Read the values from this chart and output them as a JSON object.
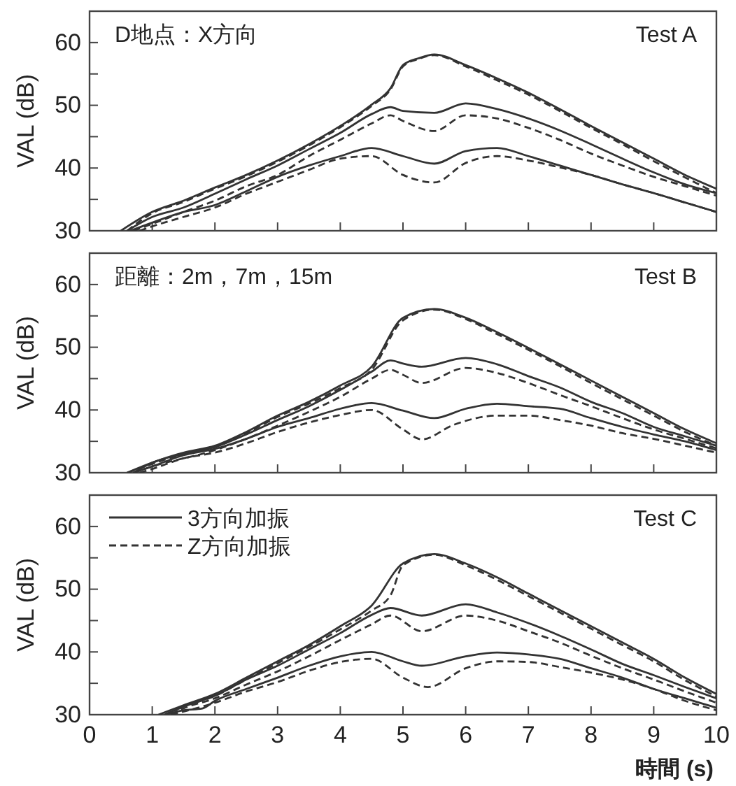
{
  "chart_data": [
    {
      "type": "line",
      "title": "Test A",
      "subtitle": "D地点：X方向",
      "ylabel": "VAL (dB)",
      "xlim": [
        0,
        10
      ],
      "ylim": [
        30,
        65
      ],
      "xticks": [
        0,
        1,
        2,
        3,
        4,
        5,
        6,
        7,
        8,
        9,
        10
      ],
      "yticks": [
        30,
        {
          "value": 35,
          "label": null
        },
        40,
        {
          "value": 45,
          "label": null
        },
        50,
        {
          "value": 55,
          "label": null
        },
        60
      ],
      "tick_labels": "y",
      "series": [
        {
          "color": "#333333",
          "line_style": "solid",
          "x": [
            0.5,
            1,
            1.5,
            2,
            2.5,
            3,
            3.5,
            4,
            4.5,
            4.8,
            5,
            5.25,
            5.5,
            6,
            6.5,
            7,
            7.5,
            8,
            8.5,
            9,
            9.5,
            10
          ],
          "values": [
            30,
            33,
            34.8,
            36.9,
            38.9,
            41.2,
            43.8,
            46.7,
            50.1,
            52.7,
            56.4,
            57.5,
            58.1,
            56.4,
            54.3,
            52,
            49.4,
            46.7,
            44.1,
            41.5,
            38.9,
            36.7
          ]
        },
        {
          "color": "#333333",
          "line_style": "dashed",
          "x": [
            0.6,
            1,
            1.5,
            2,
            2.5,
            3,
            3.5,
            4,
            4.5,
            4.8,
            5,
            5.25,
            5.5,
            6,
            6.5,
            7,
            7.5,
            8,
            8.5,
            9,
            9.5,
            10
          ],
          "values": [
            30,
            32.8,
            34.6,
            36.7,
            38.7,
            41,
            43.6,
            46.5,
            49.9,
            52.5,
            56.2,
            57.4,
            58,
            56.2,
            54,
            51.7,
            49.1,
            46.4,
            43.8,
            41.1,
            38.5,
            36
          ]
        },
        {
          "color": "#333333",
          "line_style": "solid",
          "x": [
            0.6,
            1,
            1.5,
            2,
            2.5,
            3,
            3.5,
            4,
            4.5,
            4.8,
            5,
            5.5,
            6,
            6.5,
            7,
            7.5,
            8,
            8.5,
            9,
            9.5,
            10
          ],
          "values": [
            30,
            32.2,
            33.7,
            35.9,
            38.2,
            40.4,
            43,
            45.6,
            48.6,
            49.7,
            49.1,
            48.8,
            50.3,
            49.4,
            47.9,
            46,
            43.8,
            41.5,
            39.3,
            37.4,
            36
          ]
        },
        {
          "color": "#333333",
          "line_style": "dashed",
          "x": [
            0.7,
            1,
            1.5,
            2,
            2.5,
            3,
            3.5,
            4,
            4.5,
            4.8,
            5,
            5.5,
            6,
            6.5,
            7,
            7.5,
            8,
            8.5,
            9,
            9.5,
            10
          ],
          "values": [
            30,
            31.1,
            33,
            34.8,
            37.1,
            38.9,
            41.9,
            44.5,
            47.1,
            48.4,
            47.5,
            45.9,
            48.4,
            47.9,
            46.4,
            44.5,
            42.3,
            40.4,
            38.6,
            37.1,
            35.6
          ]
        },
        {
          "color": "#333333",
          "line_style": "solid",
          "x": [
            0.65,
            1,
            1.5,
            2,
            2.5,
            3,
            3.5,
            4,
            4.5,
            5,
            5.5,
            6,
            6.5,
            7,
            7.5,
            8,
            8.5,
            9,
            9.5,
            10
          ],
          "values": [
            30,
            31.3,
            33,
            34.1,
            36.3,
            38.6,
            40.4,
            41.9,
            43.2,
            41.9,
            40.7,
            42.7,
            43.2,
            41.9,
            40.4,
            38.9,
            37.4,
            36,
            34.5,
            33
          ]
        },
        {
          "color": "#333333",
          "line_style": "dashed",
          "x": [
            0.8,
            1,
            1.5,
            2,
            2.5,
            3,
            3.5,
            4,
            4.5,
            5,
            5.5,
            6,
            6.5,
            7,
            7.5,
            8,
            8.5,
            9,
            9.5,
            10
          ],
          "values": [
            30,
            30.7,
            32.2,
            33.7,
            35.9,
            37.8,
            39.7,
            41.5,
            41.9,
            38.9,
            37.7,
            40.8,
            41.9,
            41.2,
            40.1,
            38.9,
            37.4,
            36,
            34.5,
            33
          ]
        }
      ]
    },
    {
      "type": "line",
      "title": "Test B",
      "subtitle": "距離：2m，7m，15m",
      "ylabel": "VAL (dB)",
      "xlim": [
        0,
        10
      ],
      "ylim": [
        30,
        65
      ],
      "xticks": [
        0,
        1,
        2,
        3,
        4,
        5,
        6,
        7,
        8,
        9,
        10
      ],
      "yticks": [
        30,
        {
          "value": 35,
          "label": null
        },
        40,
        {
          "value": 45,
          "label": null
        },
        50,
        {
          "value": 55,
          "label": null
        },
        60
      ],
      "tick_labels": "y",
      "series": [
        {
          "color": "#333333",
          "line_style": "solid",
          "x": [
            0.6,
            1,
            1.5,
            2,
            2.5,
            3,
            3.5,
            4,
            4.5,
            5,
            5.5,
            6,
            6.5,
            7,
            7.5,
            8,
            8.5,
            9,
            9.5,
            10
          ],
          "values": [
            30,
            31.6,
            33.2,
            34.3,
            36.5,
            39.1,
            41.3,
            43.9,
            46.9,
            54.7,
            56.1,
            54.7,
            52.4,
            49.9,
            47.3,
            44.7,
            42.1,
            39.5,
            36.9,
            34.7
          ]
        },
        {
          "color": "#333333",
          "line_style": "dashed",
          "x": [
            0.6,
            1,
            1.5,
            2,
            2.5,
            3,
            3.5,
            4,
            4.5,
            5,
            5.5,
            6,
            6.5,
            7,
            7.5,
            8,
            8.5,
            9,
            9.5,
            10
          ],
          "values": [
            30,
            31.4,
            33,
            34.1,
            36.3,
            38.9,
            41,
            43.5,
            46.4,
            54.3,
            56,
            54.5,
            52.1,
            49.6,
            47,
            44.3,
            41.7,
            39.1,
            36.5,
            34.3
          ]
        },
        {
          "color": "#333333",
          "line_style": "solid",
          "x": [
            0.7,
            1,
            1.5,
            2,
            2.5,
            3,
            3.5,
            4,
            4.5,
            4.8,
            5,
            5.3,
            6,
            6.5,
            7,
            7.5,
            8,
            8.5,
            9,
            9.5,
            10
          ],
          "values": [
            30,
            31.6,
            33,
            34.1,
            36.1,
            38.4,
            40.6,
            43.2,
            46.1,
            47.9,
            47.4,
            46.9,
            48.3,
            47.3,
            45.4,
            43.6,
            41.3,
            39.5,
            37.3,
            35.8,
            34.3
          ]
        },
        {
          "color": "#333333",
          "line_style": "dashed",
          "x": [
            0.7,
            1,
            2,
            2.5,
            3,
            3.5,
            4,
            4.5,
            4.8,
            5,
            5.3,
            6,
            6.5,
            7,
            7.5,
            8,
            8.5,
            9,
            9.5,
            10
          ],
          "values": [
            30,
            31,
            33.6,
            35.4,
            37.5,
            39.7,
            42.1,
            45,
            46.4,
            45.6,
            44.3,
            46.7,
            45.9,
            44.3,
            42.4,
            40.6,
            38.7,
            36.9,
            35.4,
            33.9
          ]
        },
        {
          "color": "#333333",
          "line_style": "solid",
          "x": [
            0.7,
            1,
            1.5,
            2,
            2.5,
            3,
            3.5,
            4,
            4.5,
            5,
            5.5,
            6,
            6.5,
            7,
            7.5,
            8,
            8.5,
            9,
            9.5,
            10
          ],
          "values": [
            30,
            31,
            32.8,
            33.8,
            35.4,
            37.3,
            38.7,
            40.2,
            41.1,
            39.9,
            38.7,
            40.2,
            41,
            40.6,
            40.2,
            38.7,
            37.3,
            36.1,
            35,
            33.6
          ]
        },
        {
          "color": "#333333",
          "line_style": "dashed",
          "x": [
            0.8,
            1,
            1.5,
            2,
            2.5,
            3,
            3.5,
            4,
            4.5,
            5,
            5.3,
            5.8,
            6.5,
            7,
            7.5,
            8,
            8.5,
            9,
            9.5,
            10
          ],
          "values": [
            30,
            30.6,
            32.3,
            33.2,
            34.7,
            36.5,
            38,
            39.2,
            40,
            36.9,
            35.3,
            37.6,
            39.1,
            39.1,
            38.4,
            37.5,
            36.3,
            35.4,
            34.3,
            33.2
          ]
        }
      ]
    },
    {
      "type": "line",
      "title": "Test C",
      "xlabel": "時間 (s)",
      "ylabel": "VAL (dB)",
      "xlim": [
        0,
        10
      ],
      "ylim": [
        30,
        65
      ],
      "xticks": [
        0,
        1,
        2,
        3,
        4,
        5,
        6,
        7,
        8,
        9,
        10
      ],
      "yticks": [
        30,
        {
          "value": 35,
          "label": null
        },
        40,
        {
          "value": 45,
          "label": null
        },
        50,
        {
          "value": 55,
          "label": null
        },
        60
      ],
      "legend": "top left",
      "series": [
        {
          "name": "3方向加振",
          "color": "#333333",
          "line_style": "solid",
          "x": [
            1.1,
            1.5,
            2,
            2.5,
            3,
            3.5,
            4,
            4.5,
            5,
            5.5,
            6,
            6.5,
            7,
            7.5,
            8,
            8.5,
            9,
            9.5,
            10
          ],
          "values": [
            30,
            31.5,
            33.3,
            35.9,
            38.5,
            41.1,
            44.1,
            47.4,
            54.1,
            55.6,
            54.1,
            51.9,
            49.3,
            46.7,
            44.1,
            41.5,
            38.9,
            35.9,
            33.3
          ]
        },
        {
          "name": "Z方向加振",
          "color": "#333333",
          "line_style": "dashed",
          "x": [
            1.2,
            1.5,
            2,
            2.5,
            3,
            3.5,
            4,
            4.5,
            4.8,
            5,
            5.5,
            6,
            6.5,
            7,
            7.5,
            8,
            8.5,
            9,
            9.5,
            10
          ],
          "values": [
            30,
            31.3,
            33,
            35.6,
            38.2,
            40.8,
            43.6,
            46.6,
            49,
            53.8,
            55.5,
            53.8,
            51.5,
            48.9,
            46.3,
            43.7,
            41.1,
            38.5,
            35.5,
            32.9
          ]
        },
        {
          "color": "#333333",
          "line_style": "solid",
          "x": [
            1.2,
            1.5,
            2,
            2.5,
            3,
            3.5,
            4,
            4.5,
            4.8,
            5.3,
            6,
            6.5,
            7,
            7.5,
            8,
            8.5,
            9,
            9.5,
            10
          ],
          "values": [
            30,
            31.3,
            33,
            35.6,
            37.8,
            40.4,
            43,
            45.9,
            47,
            45.8,
            47.6,
            46.3,
            44.6,
            42.6,
            40.4,
            38.1,
            36.3,
            34.4,
            32.6
          ]
        },
        {
          "color": "#333333",
          "line_style": "dashed",
          "x": [
            1.3,
            1.5,
            2,
            2.5,
            3,
            3.5,
            4,
            4.5,
            4.8,
            5.3,
            6,
            6.5,
            7,
            7.5,
            8,
            8.5,
            9,
            9.5,
            10
          ],
          "values": [
            30,
            31,
            32.6,
            34.8,
            36.9,
            39.3,
            41.9,
            44.4,
            45.8,
            43.3,
            45.8,
            45,
            43.3,
            41.5,
            39.4,
            37.4,
            35.6,
            33.7,
            31.9
          ]
        },
        {
          "color": "#333333",
          "line_style": "solid",
          "x": [
            1.2,
            1.5,
            1.8,
            2,
            2.5,
            3,
            3.5,
            4,
            4.5,
            5,
            5.3,
            6,
            6.5,
            7,
            7.5,
            8,
            8.5,
            9,
            9.5,
            10
          ],
          "values": [
            30,
            30.7,
            31,
            32.2,
            34.1,
            35.9,
            37.8,
            39.3,
            40,
            38.5,
            37.8,
            39.3,
            39.9,
            39.6,
            38.9,
            37.4,
            35.9,
            34.1,
            32.6,
            31.1
          ]
        },
        {
          "color": "#333333",
          "line_style": "dashed",
          "x": [
            1.3,
            2,
            2.5,
            3,
            3.5,
            4,
            4.5,
            5,
            5.4,
            6,
            6.5,
            7,
            7.5,
            8,
            8.5,
            9,
            9.5,
            10
          ],
          "values": [
            30,
            31.9,
            33.7,
            35.2,
            37,
            38.4,
            38.9,
            35.9,
            34.4,
            37.4,
            38.5,
            38.4,
            37.6,
            36.7,
            35.6,
            34.1,
            32.2,
            30.7
          ]
        }
      ]
    }
  ]
}
